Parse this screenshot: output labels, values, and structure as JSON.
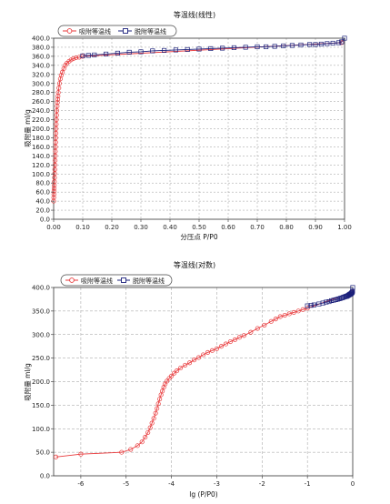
{
  "colors": {
    "adsorption": "#e8393b",
    "desorption": "#1a1f7a",
    "grid": "#9a9a9a"
  },
  "chart_data": [
    {
      "type": "line",
      "title": "等温线(线性)",
      "xlabel": "分压点 P/P0",
      "ylabel": "吸附量 ml/g",
      "xlim": [
        0.0,
        1.0
      ],
      "ylim": [
        0.0,
        400.0
      ],
      "xticks": [
        "0.00",
        "0.10",
        "0.20",
        "0.30",
        "0.40",
        "0.50",
        "0.60",
        "0.70",
        "0.80",
        "0.90",
        "1.00"
      ],
      "xtick_values": [
        0,
        0.1,
        0.2,
        0.3,
        0.4,
        0.5,
        0.6,
        0.7,
        0.8,
        0.9,
        1.0
      ],
      "yticks": [
        "0.0",
        "20.0",
        "40.0",
        "60.0",
        "80.0",
        "100.0",
        "120.0",
        "140.0",
        "160.0",
        "180.0",
        "200.0",
        "220.0",
        "240.0",
        "260.0",
        "280.0",
        "300.0",
        "320.0",
        "340.0",
        "360.0",
        "380.0",
        "400.0"
      ],
      "ytick_values": [
        0,
        20,
        40,
        60,
        80,
        100,
        120,
        140,
        160,
        180,
        200,
        220,
        240,
        260,
        280,
        300,
        320,
        340,
        360,
        380,
        400
      ],
      "grid": true,
      "legend": "top-left",
      "series": [
        {
          "name": "吸附等温线",
          "marker": "circle",
          "color": "#e8393b",
          "x": [
            0.0,
            0.0004,
            0.0008,
            0.0012,
            0.0016,
            0.002,
            0.0025,
            0.003,
            0.0035,
            0.004,
            0.0045,
            0.005,
            0.0055,
            0.006,
            0.0065,
            0.007,
            0.0075,
            0.008,
            0.0085,
            0.009,
            0.0095,
            0.0102,
            0.011,
            0.012,
            0.013,
            0.014,
            0.015,
            0.016,
            0.018,
            0.02,
            0.023,
            0.026,
            0.03,
            0.035,
            0.04,
            0.046,
            0.053,
            0.06,
            0.068,
            0.077,
            0.088,
            0.1,
            0.99
          ],
          "y": [
            40,
            48,
            55,
            62,
            68,
            75,
            83,
            92,
            101,
            110,
            120,
            130,
            140,
            150,
            160,
            170,
            180,
            190,
            200,
            210,
            220,
            230,
            240,
            250,
            258,
            265,
            272,
            280,
            290,
            300,
            310,
            318,
            325,
            333,
            340,
            345,
            349,
            352,
            355,
            357,
            358,
            360,
            390
          ]
        },
        {
          "name": "脱附等温线",
          "marker": "square",
          "color": "#1a1f7a",
          "x": [
            1.0,
            0.99,
            0.98,
            0.96,
            0.94,
            0.92,
            0.9,
            0.88,
            0.85,
            0.82,
            0.79,
            0.76,
            0.73,
            0.7,
            0.66,
            0.62,
            0.58,
            0.54,
            0.5,
            0.46,
            0.42,
            0.38,
            0.34,
            0.3,
            0.26,
            0.22,
            0.18,
            0.14,
            0.12,
            0.1
          ],
          "y": [
            400,
            392,
            390,
            389,
            388,
            387,
            386,
            386,
            385,
            384,
            383,
            382,
            381,
            381,
            380,
            379,
            378,
            377,
            376,
            375,
            374,
            373,
            372,
            370,
            369,
            367,
            365,
            363,
            362,
            361
          ]
        }
      ]
    },
    {
      "type": "line",
      "title": "等温线(对数)",
      "xlabel": "lg (P/P0)",
      "ylabel": "吸附量 ml/g",
      "xlim": [
        -6.6,
        0.0
      ],
      "ylim": [
        0.0,
        400.0
      ],
      "xticks": [
        "-6",
        "-5",
        "-4",
        "-3",
        "-2",
        "-1",
        "0"
      ],
      "xtick_values": [
        -6,
        -5,
        -4,
        -3,
        -2,
        -1,
        0
      ],
      "yticks": [
        "0.0",
        "50.0",
        "100.0",
        "150.0",
        "200.0",
        "250.0",
        "300.0",
        "350.0",
        "400.0"
      ],
      "ytick_values": [
        0,
        50,
        100,
        150,
        200,
        250,
        300,
        350,
        400
      ],
      "grid": true,
      "legend": "top-left",
      "series": [
        {
          "name": "吸附等温线",
          "marker": "circle",
          "color": "#e8393b",
          "x": [
            -6.55,
            -6.0,
            -5.1,
            -4.9,
            -4.75,
            -4.65,
            -4.58,
            -4.52,
            -4.47,
            -4.43,
            -4.39,
            -4.35,
            -4.32,
            -4.29,
            -4.26,
            -4.23,
            -4.2,
            -4.17,
            -4.14,
            -4.1,
            -4.05,
            -4.0,
            -3.94,
            -3.88,
            -3.8,
            -3.7,
            -3.6,
            -3.5,
            -3.4,
            -3.3,
            -3.2,
            -3.1,
            -3.0,
            -2.9,
            -2.8,
            -2.7,
            -2.6,
            -2.5,
            -2.4,
            -2.25,
            -2.1,
            -1.95,
            -1.8,
            -1.7,
            -1.6,
            -1.5,
            -1.4,
            -1.3,
            -1.2,
            -1.1,
            -1.0,
            -0.004
          ],
          "y": [
            40,
            46,
            50,
            56,
            64,
            72,
            82,
            92,
            102,
            112,
            122,
            133,
            143,
            153,
            163,
            172,
            180,
            188,
            195,
            201,
            207,
            212,
            218,
            223,
            229,
            235,
            240,
            246,
            251,
            257,
            262,
            266,
            270,
            275,
            280,
            285,
            289,
            294,
            298,
            305,
            313,
            320,
            328,
            333,
            338,
            341,
            344,
            347,
            350,
            353,
            356,
            390
          ]
        },
        {
          "name": "脱附等温线",
          "marker": "square",
          "color": "#1a1f7a",
          "x": [
            0.0,
            -0.004,
            -0.009,
            -0.018,
            -0.027,
            -0.036,
            -0.046,
            -0.056,
            -0.071,
            -0.086,
            -0.102,
            -0.119,
            -0.137,
            -0.155,
            -0.18,
            -0.208,
            -0.237,
            -0.268,
            -0.301,
            -0.337,
            -0.377,
            -0.42,
            -0.469,
            -0.523,
            -0.585,
            -0.658,
            -0.745,
            -0.854,
            -0.921,
            -1.0
          ],
          "y": [
            400,
            392,
            390,
            389,
            388,
            387,
            386,
            386,
            385,
            384,
            383,
            382,
            381,
            381,
            380,
            379,
            378,
            377,
            376,
            375,
            374,
            373,
            372,
            370,
            369,
            367,
            365,
            363,
            362,
            361
          ]
        }
      ]
    }
  ]
}
